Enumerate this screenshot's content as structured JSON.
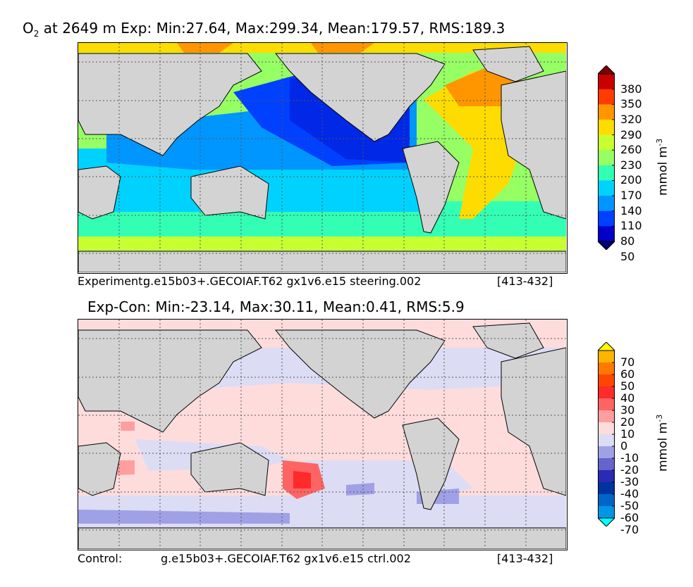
{
  "top_panel": {
    "title_species": "O",
    "title_sub": "2",
    "title_rest": " at 2649 m Exp: Min:27.64, Max:299.34, Mean:179.57, RMS:189.3",
    "caption_left": "Experiment:",
    "caption_mid": "g.e15b03+.GECOIAF.T62 gx1v6.e15 steering.002",
    "caption_right": "[413-432]",
    "colorbar": {
      "unit": "mmol m",
      "unit_sup": "-3",
      "tick_labels": [
        "380",
        "350",
        "320",
        "290",
        "260",
        "230",
        "200",
        "170",
        "140",
        "110",
        "80",
        "50"
      ],
      "colors": [
        "#7f0000",
        "#c80000",
        "#ff3c00",
        "#ff9600",
        "#ffdc00",
        "#c8ff32",
        "#96ff64",
        "#32ffb4",
        "#00d2ff",
        "#0096ff",
        "#0040ff",
        "#0000c8",
        "#00006e"
      ]
    }
  },
  "bottom_panel": {
    "title": "Exp-Con: Min:-23.14, Max:30.11, Mean:0.41, RMS:5.9",
    "caption_left": "Control:",
    "caption_mid": "g.e15b03+.GECOIAF.T62 gx1v6.e15 ctrl.002",
    "caption_right": "[413-432]",
    "colorbar": {
      "unit": "mmol m",
      "unit_sup": "-3",
      "tick_labels": [
        "70",
        "60",
        "50",
        "40",
        "30",
        "20",
        "10",
        "0",
        "-10",
        "-20",
        "-30",
        "-40",
        "-50",
        "-60",
        "-70"
      ],
      "colors": [
        "#ffff00",
        "#ffb400",
        "#ff7800",
        "#ff4600",
        "#ff2a2a",
        "#ff6464",
        "#ff9e9e",
        "#ffdcdc",
        "#dcdcf5",
        "#a0a0e6",
        "#6464cc",
        "#2a2ab4",
        "#0032a0",
        "#0064c8",
        "#0096e6",
        "#00ffff"
      ]
    }
  },
  "colors": {
    "land": "#d3d3d3",
    "grid": "#555555"
  }
}
